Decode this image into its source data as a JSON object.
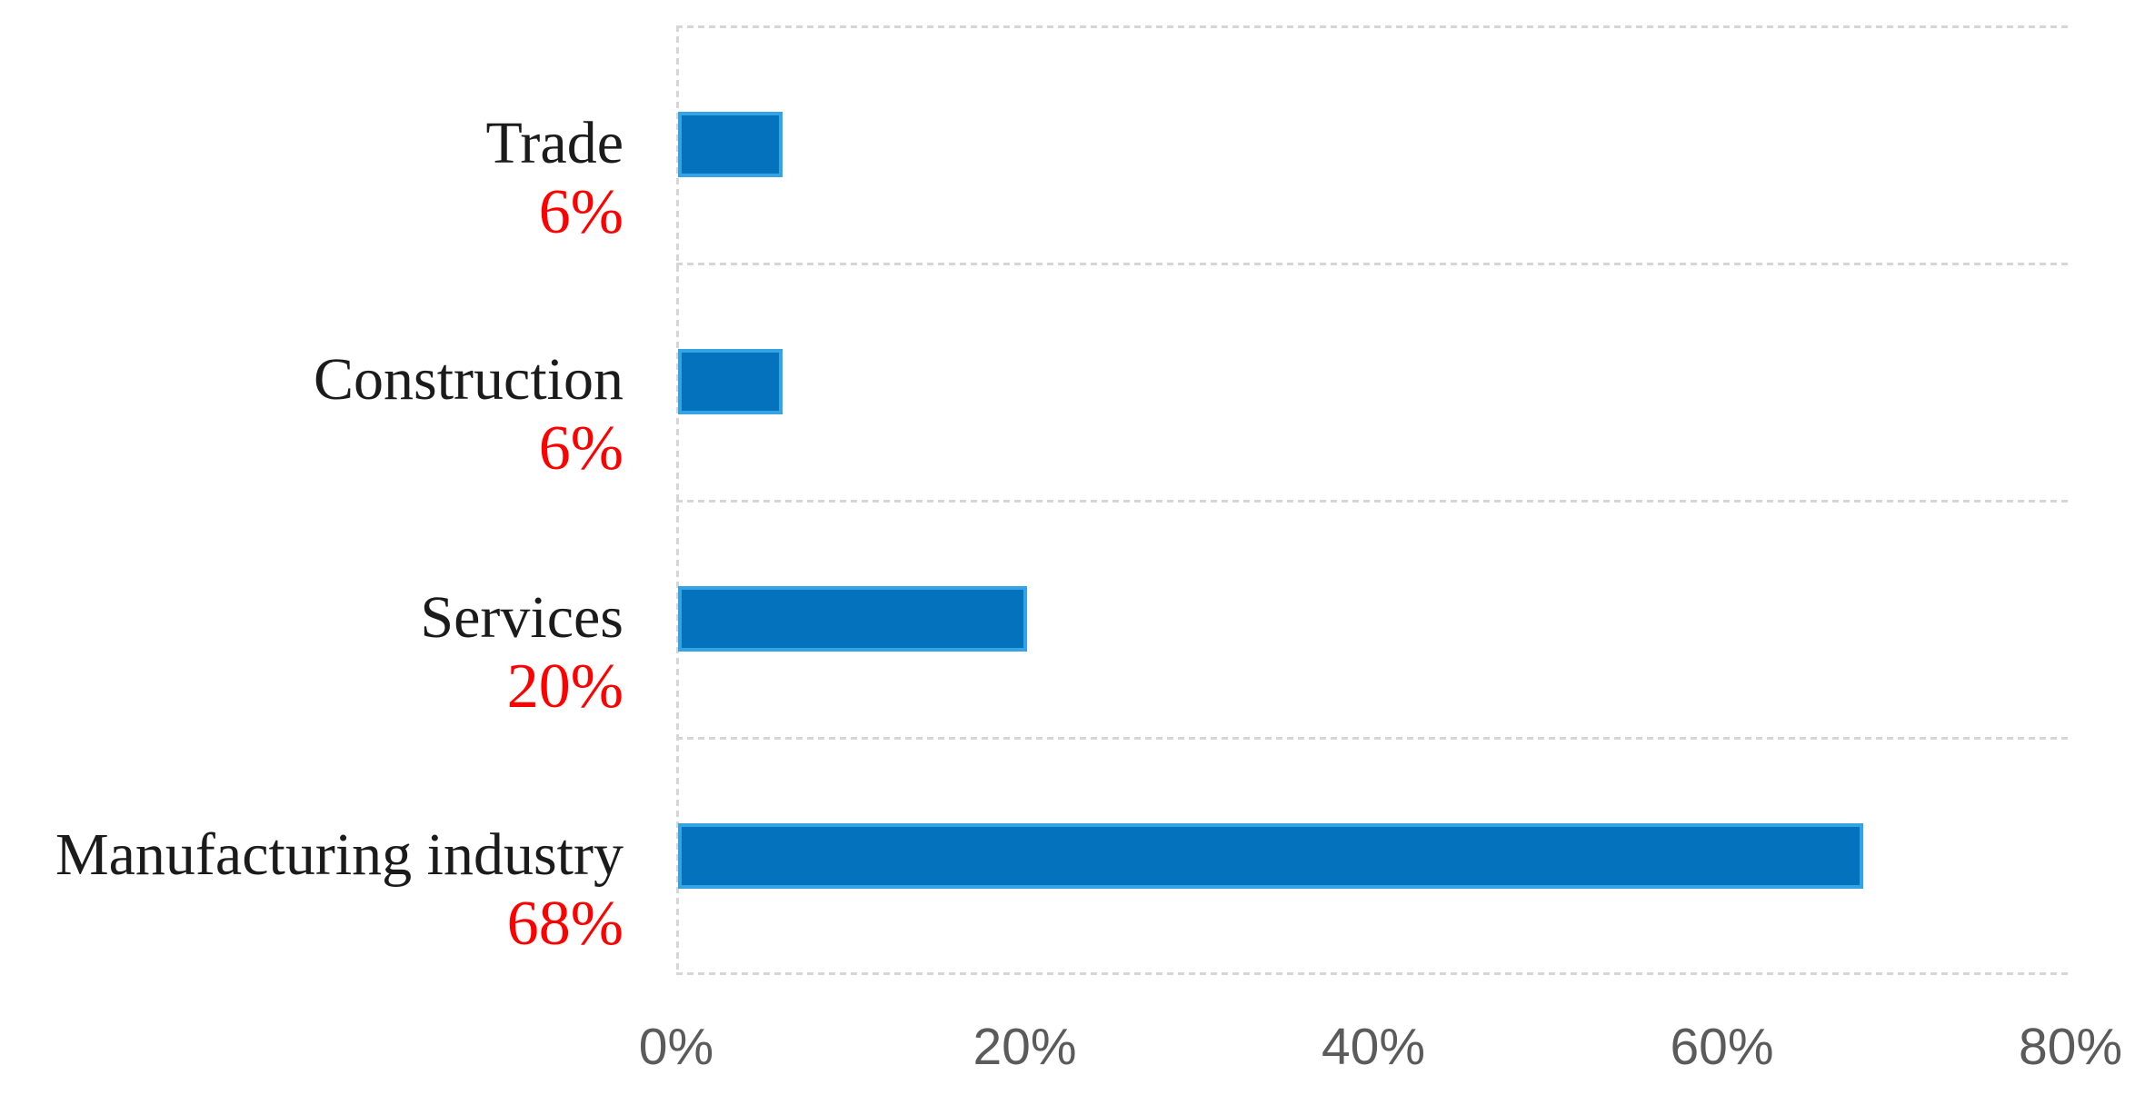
{
  "figure": {
    "background": "#ffffff"
  },
  "chart_data": {
    "type": "bar",
    "orientation": "horizontal",
    "title": "",
    "categories": [
      "Trade",
      "Construction",
      "Services",
      "Manufacturing industry"
    ],
    "values": [
      6,
      6,
      20,
      68
    ],
    "data_labels": [
      "6%",
      "6%",
      "20%",
      "68%"
    ],
    "x_axis": {
      "min": 0,
      "max": 80,
      "tick_values": [
        0,
        20,
        40,
        60,
        80
      ],
      "tick_labels": [
        "0%",
        "20%",
        "40%",
        "60%",
        "80%"
      ]
    },
    "y_axis": {
      "category_order_top_to_bottom": [
        "Trade",
        "Construction",
        "Services",
        "Manufacturing industry"
      ]
    },
    "legend": "none",
    "grid": {
      "horizontal_band_separators": true,
      "vertical_gridlines": false,
      "line_style": "dotted"
    },
    "colors": {
      "bar_fill": "#0572bd",
      "bar_border": "#36a3e5",
      "data_label": "#ff0000",
      "category_label": "#1b1b1b",
      "tick_label": "#5b5b5b",
      "gridline": "#d6d6d6"
    }
  }
}
